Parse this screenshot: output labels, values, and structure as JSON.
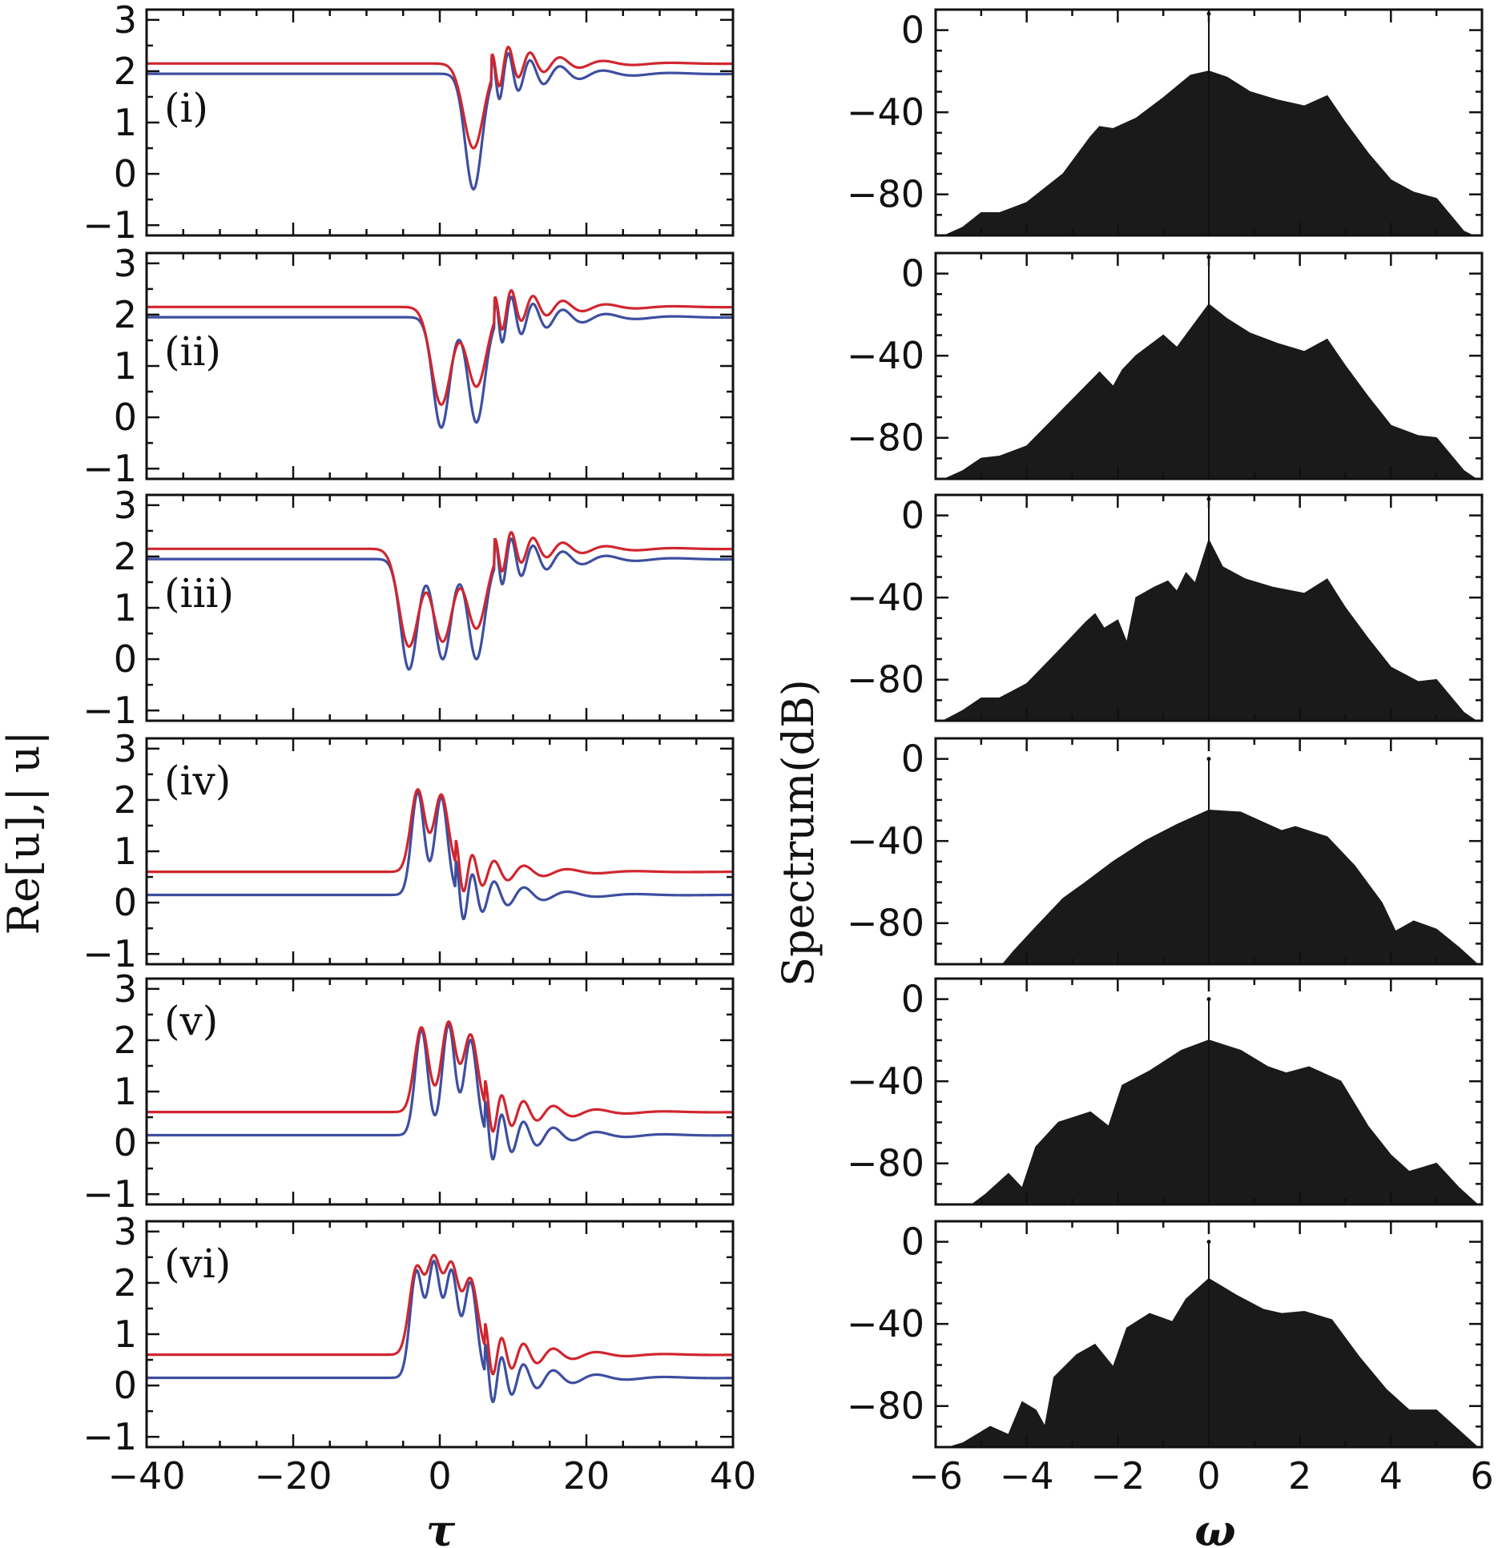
{
  "chart_data": [
    {
      "type": "line",
      "title": "",
      "xlabel": "τ",
      "ylabel": "Re[u],| u|",
      "xlim": [
        -40,
        40
      ],
      "ylim": [
        -1.2,
        3.2
      ],
      "xticks": [
        "−40",
        "−20",
        "0",
        "20",
        "40"
      ],
      "yticks": [
        "−1",
        "0",
        "1",
        "2",
        "3"
      ],
      "series_names": [
        "Re[u]",
        "|u|"
      ],
      "series_colors": [
        "#3d4fa0",
        "#d0262f"
      ],
      "panels": [
        {
          "label": "(i)",
          "bg_re": 1.95,
          "bg_abs": 2.15,
          "dips": [
            {
              "center": 4.6,
              "re_min": -0.3,
              "abs_min": 0.5
            }
          ],
          "peaks": []
        },
        {
          "label": "(ii)",
          "bg_re": 1.95,
          "bg_abs": 2.15,
          "dips": [
            {
              "center": 0.2,
              "re_min": -0.2,
              "abs_min": 0.25
            },
            {
              "center": 5.0,
              "re_min": -0.1,
              "abs_min": 0.6
            }
          ],
          "peaks": []
        },
        {
          "label": "(iii)",
          "bg_re": 1.95,
          "bg_abs": 2.15,
          "dips": [
            {
              "center": -4.2,
              "re_min": -0.2,
              "abs_min": 0.25
            },
            {
              "center": 0.4,
              "re_min": 0.0,
              "abs_min": 0.35
            },
            {
              "center": 5.0,
              "re_min": 0.0,
              "abs_min": 0.6
            }
          ],
          "peaks": []
        },
        {
          "label": "(iv)",
          "bg_re": 0.15,
          "bg_abs": 0.6,
          "dips": [],
          "peaks": [
            {
              "center": -3.0,
              "re_max": 2.15,
              "abs_max": 2.2
            },
            {
              "center": 0.2,
              "re_max": 2.05,
              "abs_max": 2.1
            }
          ]
        },
        {
          "label": "(v)",
          "bg_re": 0.15,
          "bg_abs": 0.6,
          "dips": [],
          "peaks": [
            {
              "center": -2.5,
              "re_max": 2.2,
              "abs_max": 2.25
            },
            {
              "center": 1.2,
              "re_max": 2.3,
              "abs_max": 2.35
            },
            {
              "center": 4.2,
              "re_max": 2.0,
              "abs_max": 2.1
            }
          ]
        },
        {
          "label": "(vi)",
          "bg_re": 0.15,
          "bg_abs": 0.6,
          "dips": [],
          "peaks": [
            {
              "center": -3.2,
              "re_max": 2.2,
              "abs_max": 2.25
            },
            {
              "center": -0.8,
              "re_max": 2.35,
              "abs_max": 2.4
            },
            {
              "center": 1.6,
              "re_max": 2.2,
              "abs_max": 2.3
            },
            {
              "center": 4.2,
              "re_max": 2.0,
              "abs_max": 2.05
            }
          ]
        }
      ]
    },
    {
      "type": "area",
      "title": "",
      "xlabel": "ω",
      "ylabel": "Spectrum(dB)",
      "xlim": [
        -6,
        6
      ],
      "ylim": [
        -100,
        10
      ],
      "xticks": [
        "−6",
        "−4",
        "−2",
        "0",
        "2",
        "4",
        "6"
      ],
      "yticks": [
        "0",
        "−40",
        "−80"
      ],
      "fill_color": "#1a1a1a",
      "panels": [
        {
          "spike_top_db": 8,
          "envelope": [
            [
              -6,
              -102
            ],
            [
              -5.4,
              -96
            ],
            [
              -5.0,
              -89
            ],
            [
              -4.6,
              -89
            ],
            [
              -4.0,
              -84
            ],
            [
              -3.2,
              -70
            ],
            [
              -2.6,
              -52
            ],
            [
              -2.4,
              -47
            ],
            [
              -2.1,
              -48
            ],
            [
              -1.6,
              -43
            ],
            [
              -1.0,
              -33
            ],
            [
              -0.4,
              -22
            ],
            [
              0,
              -20
            ],
            [
              0.4,
              -23
            ],
            [
              0.9,
              -30
            ],
            [
              1.5,
              -34
            ],
            [
              2.1,
              -37
            ],
            [
              2.6,
              -32
            ],
            [
              3.0,
              -45
            ],
            [
              3.5,
              -60
            ],
            [
              4.0,
              -73
            ],
            [
              4.5,
              -79
            ],
            [
              5.0,
              -82
            ],
            [
              5.3,
              -90
            ],
            [
              5.6,
              -98
            ],
            [
              6,
              -102
            ]
          ]
        },
        {
          "spike_top_db": 8,
          "envelope": [
            [
              -6,
              -102
            ],
            [
              -5.4,
              -96
            ],
            [
              -5.0,
              -90
            ],
            [
              -4.6,
              -89
            ],
            [
              -4.0,
              -84
            ],
            [
              -3.2,
              -66
            ],
            [
              -2.4,
              -48
            ],
            [
              -2.1,
              -55
            ],
            [
              -1.9,
              -47
            ],
            [
              -1.6,
              -40
            ],
            [
              -1.0,
              -30
            ],
            [
              -0.7,
              -36
            ],
            [
              -0.4,
              -27
            ],
            [
              0,
              -15
            ],
            [
              0.4,
              -22
            ],
            [
              0.9,
              -29
            ],
            [
              1.5,
              -34
            ],
            [
              2.1,
              -38
            ],
            [
              2.6,
              -32
            ],
            [
              3.0,
              -45
            ],
            [
              3.5,
              -60
            ],
            [
              4.0,
              -74
            ],
            [
              4.6,
              -79
            ],
            [
              5.0,
              -80
            ],
            [
              5.3,
              -88
            ],
            [
              5.6,
              -96
            ],
            [
              6,
              -102
            ]
          ]
        },
        {
          "spike_top_db": 8,
          "envelope": [
            [
              -6,
              -102
            ],
            [
              -5.4,
              -95
            ],
            [
              -5.0,
              -89
            ],
            [
              -4.6,
              -89
            ],
            [
              -4.0,
              -82
            ],
            [
              -3.3,
              -66
            ],
            [
              -2.7,
              -52
            ],
            [
              -2.5,
              -48
            ],
            [
              -2.3,
              -55
            ],
            [
              -2.0,
              -51
            ],
            [
              -1.8,
              -62
            ],
            [
              -1.6,
              -40
            ],
            [
              -1.2,
              -35
            ],
            [
              -0.9,
              -32
            ],
            [
              -0.7,
              -37
            ],
            [
              -0.5,
              -28
            ],
            [
              -0.3,
              -33
            ],
            [
              0,
              -12
            ],
            [
              0.3,
              -25
            ],
            [
              0.8,
              -31
            ],
            [
              1.4,
              -35
            ],
            [
              2.1,
              -38
            ],
            [
              2.6,
              -31
            ],
            [
              3.0,
              -45
            ],
            [
              3.5,
              -60
            ],
            [
              4.0,
              -74
            ],
            [
              4.6,
              -81
            ],
            [
              5.0,
              -80
            ],
            [
              5.3,
              -88
            ],
            [
              5.6,
              -96
            ],
            [
              6,
              -102
            ]
          ]
        },
        {
          "spike_top_db": 0,
          "envelope": [
            [
              -6,
              -102
            ],
            [
              -4.6,
              -102
            ],
            [
              -4.3,
              -94
            ],
            [
              -3.8,
              -82
            ],
            [
              -3.2,
              -68
            ],
            [
              -2.7,
              -60
            ],
            [
              -2.1,
              -50
            ],
            [
              -1.4,
              -40
            ],
            [
              -0.7,
              -32
            ],
            [
              0,
              -25
            ],
            [
              0.7,
              -26
            ],
            [
              1.3,
              -32
            ],
            [
              1.6,
              -35
            ],
            [
              1.9,
              -33
            ],
            [
              2.6,
              -38
            ],
            [
              3.2,
              -52
            ],
            [
              3.8,
              -70
            ],
            [
              4.1,
              -84
            ],
            [
              4.5,
              -79
            ],
            [
              5.0,
              -83
            ],
            [
              5.5,
              -92
            ],
            [
              6,
              -102
            ]
          ]
        },
        {
          "spike_top_db": 0,
          "envelope": [
            [
              -6,
              -100
            ],
            [
              -5.2,
              -100
            ],
            [
              -4.9,
              -95
            ],
            [
              -4.4,
              -85
            ],
            [
              -4.1,
              -92
            ],
            [
              -3.8,
              -72
            ],
            [
              -3.3,
              -60
            ],
            [
              -2.6,
              -55
            ],
            [
              -2.2,
              -62
            ],
            [
              -1.9,
              -42
            ],
            [
              -1.3,
              -35
            ],
            [
              -0.6,
              -25
            ],
            [
              0,
              -20
            ],
            [
              0.7,
              -25
            ],
            [
              1.3,
              -33
            ],
            [
              1.7,
              -36
            ],
            [
              2.2,
              -33
            ],
            [
              2.9,
              -40
            ],
            [
              3.5,
              -62
            ],
            [
              4.0,
              -76
            ],
            [
              4.4,
              -84
            ],
            [
              5.0,
              -80
            ],
            [
              5.5,
              -92
            ],
            [
              6,
              -102
            ]
          ]
        },
        {
          "spike_top_db": 0,
          "envelope": [
            [
              -6,
              -102
            ],
            [
              -5.4,
              -98
            ],
            [
              -4.8,
              -90
            ],
            [
              -4.4,
              -94
            ],
            [
              -4.1,
              -78
            ],
            [
              -3.8,
              -82
            ],
            [
              -3.6,
              -90
            ],
            [
              -3.4,
              -66
            ],
            [
              -2.9,
              -55
            ],
            [
              -2.5,
              -50
            ],
            [
              -2.1,
              -61
            ],
            [
              -1.8,
              -42
            ],
            [
              -1.3,
              -35
            ],
            [
              -0.8,
              -39
            ],
            [
              -0.5,
              -28
            ],
            [
              0,
              -18
            ],
            [
              0.6,
              -26
            ],
            [
              1.2,
              -33
            ],
            [
              1.6,
              -35
            ],
            [
              2.1,
              -34
            ],
            [
              2.7,
              -38
            ],
            [
              3.3,
              -56
            ],
            [
              3.9,
              -72
            ],
            [
              4.4,
              -82
            ],
            [
              5.0,
              -82
            ],
            [
              5.4,
              -90
            ],
            [
              6,
              -102
            ]
          ]
        }
      ]
    }
  ]
}
